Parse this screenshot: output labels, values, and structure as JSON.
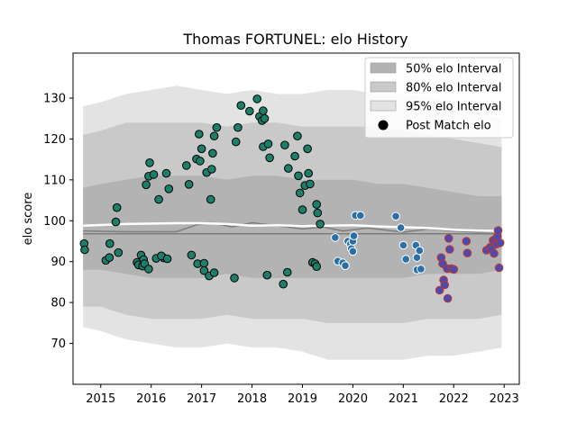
{
  "chart_data": {
    "type": "scatter",
    "title": "Thomas FORTUNEL: elo History",
    "xlabel": "",
    "ylabel": "elo score",
    "xlim": [
      2014.45,
      2023.3
    ],
    "ylim": [
      60,
      141
    ],
    "x_ticks": [
      2015,
      2016,
      2017,
      2018,
      2019,
      2020,
      2021,
      2022,
      2023
    ],
    "y_ticks": [
      70,
      80,
      90,
      100,
      110,
      120,
      130
    ],
    "grid": false,
    "legend_position": "top-right",
    "legend": [
      {
        "label": "50% elo Interval",
        "kind": "band50"
      },
      {
        "label": "80% elo Interval",
        "kind": "band80"
      },
      {
        "label": "95% elo Interval",
        "kind": "band95"
      },
      {
        "label": "Post Match elo",
        "kind": "marker"
      }
    ],
    "colors": {
      "band50": "#b3b3b3",
      "band80": "#c9c9c9",
      "band95": "#e3e3e3",
      "teal": "#1b7f6a",
      "blue": "#2a6fa8",
      "purple_fill": "#4a4ab0",
      "red_edge": "#c0392b",
      "mean_line": "#7d7d7d",
      "white_line": "#ffffff"
    },
    "bands": {
      "x": [
        2014.65,
        2015.0,
        2015.5,
        2016.0,
        2016.5,
        2017.0,
        2017.5,
        2018.0,
        2018.5,
        2019.0,
        2019.5,
        2020.0,
        2020.5,
        2021.0,
        2021.5,
        2022.0,
        2022.5,
        2022.95
      ],
      "p95_upper": [
        128,
        129,
        131,
        132,
        133,
        132,
        131,
        132,
        131,
        131,
        132,
        132,
        131,
        131,
        130,
        129,
        126,
        125
      ],
      "p95_lower": [
        74,
        73,
        71,
        70,
        69,
        69,
        70,
        69,
        69,
        68,
        66,
        66,
        66,
        66,
        67,
        67,
        68,
        69
      ],
      "p80_upper": [
        121,
        122,
        124,
        124,
        124,
        124,
        123,
        124,
        124,
        123,
        123,
        123,
        123,
        122,
        121,
        120,
        119,
        118
      ],
      "p80_lower": [
        79,
        79,
        77,
        76,
        76,
        76,
        77,
        76,
        76,
        76,
        75,
        75,
        75,
        75,
        76,
        76,
        76,
        77
      ],
      "p50_upper": [
        108,
        109,
        110,
        111,
        111,
        111,
        110,
        111,
        111,
        110,
        110,
        110,
        109,
        109,
        108,
        107,
        106,
        106
      ],
      "p50_lower": [
        88,
        88,
        87,
        86,
        86,
        86,
        87,
        86,
        86,
        86,
        86,
        86,
        86,
        86,
        87,
        87,
        87,
        88
      ]
    },
    "mean_line": {
      "x": [
        2014.65,
        2015.5,
        2016.5,
        2016.9,
        2017.2,
        2017.6,
        2018.0,
        2018.5,
        2019.0,
        2019.4,
        2019.8,
        2020.3,
        2021.0,
        2021.5,
        2022.0,
        2022.5,
        2022.9
      ],
      "y": [
        97.5,
        97.3,
        97.3,
        99.0,
        99.5,
        98.5,
        99.5,
        98.8,
        98.0,
        98.5,
        97.5,
        98.2,
        97.2,
        98.0,
        97.5,
        97.2,
        97.4
      ]
    },
    "median_line": {
      "x": [
        2014.65,
        2022.95
      ],
      "y": [
        96.8,
        96.8
      ]
    },
    "white_line": {
      "x": [
        2014.65,
        2015.5,
        2016.5,
        2017.0,
        2017.5,
        2018.0,
        2018.5,
        2019.0,
        2019.5,
        2020.0,
        2020.5,
        2021.0,
        2021.5,
        2022.0,
        2022.5,
        2022.95
      ],
      "y": [
        98.8,
        99.2,
        99.4,
        99.4,
        99.2,
        98.8,
        98.9,
        98.7,
        98.8,
        98.9,
        98.6,
        98.4,
        98.2,
        97.8,
        97.6,
        97.5
      ]
    },
    "series": [
      {
        "group": "teal",
        "points": [
          [
            2014.67,
            94.4
          ],
          [
            2014.68,
            92.9
          ],
          [
            2015.1,
            90.3
          ],
          [
            2015.18,
            94.4
          ],
          [
            2015.17,
            91.0
          ],
          [
            2015.3,
            99.7
          ],
          [
            2015.32,
            103.2
          ],
          [
            2015.35,
            92.2
          ],
          [
            2015.72,
            89.8
          ],
          [
            2015.75,
            89.2
          ],
          [
            2015.8,
            91.6
          ],
          [
            2015.83,
            88.9
          ],
          [
            2015.85,
            90.5
          ],
          [
            2015.87,
            89.5
          ],
          [
            2015.9,
            108.8
          ],
          [
            2015.95,
            110.9
          ],
          [
            2015.95,
            88.2
          ],
          [
            2015.97,
            114.2
          ],
          [
            2016.05,
            111.3
          ],
          [
            2016.1,
            90.8
          ],
          [
            2016.15,
            105.2
          ],
          [
            2016.25,
            90.9
          ],
          [
            2016.2,
            91.4
          ],
          [
            2016.3,
            111.6
          ],
          [
            2016.32,
            90.7
          ],
          [
            2016.35,
            107.8
          ],
          [
            2016.7,
            113.5
          ],
          [
            2016.75,
            108.9
          ],
          [
            2016.8,
            91.6
          ],
          [
            2016.9,
            115.1
          ],
          [
            2016.92,
            89.5
          ],
          [
            2016.95,
            121.2
          ],
          [
            2016.97,
            114.6
          ],
          [
            2017.0,
            117.6
          ],
          [
            2017.05,
            89.6
          ],
          [
            2017.05,
            87.8
          ],
          [
            2017.1,
            111.8
          ],
          [
            2017.15,
            86.5
          ],
          [
            2017.18,
            105.2
          ],
          [
            2017.2,
            112.6
          ],
          [
            2017.22,
            116.5
          ],
          [
            2017.25,
            120.7
          ],
          [
            2017.25,
            87.3
          ],
          [
            2017.3,
            122.8
          ],
          [
            2017.65,
            86.0
          ],
          [
            2017.68,
            119.3
          ],
          [
            2017.72,
            122.8
          ],
          [
            2017.78,
            128.2
          ],
          [
            2017.95,
            126.8
          ],
          [
            2018.1,
            129.8
          ],
          [
            2018.15,
            125.5
          ],
          [
            2018.2,
            124.5
          ],
          [
            2018.22,
            126.9
          ],
          [
            2018.22,
            118.1
          ],
          [
            2018.25,
            125.0
          ],
          [
            2018.3,
            86.7
          ],
          [
            2018.32,
            118.8
          ],
          [
            2018.35,
            115.4
          ],
          [
            2018.62,
            84.5
          ],
          [
            2018.65,
            118.5
          ],
          [
            2018.7,
            87.4
          ],
          [
            2018.72,
            112.8
          ],
          [
            2018.85,
            115.8
          ],
          [
            2018.9,
            120.7
          ],
          [
            2018.92,
            111.0
          ],
          [
            2018.95,
            106.8
          ],
          [
            2019.0,
            102.7
          ],
          [
            2019.05,
            108.6
          ],
          [
            2019.1,
            117.6
          ],
          [
            2019.12,
            111.6
          ],
          [
            2019.15,
            109.0
          ],
          [
            2019.2,
            89.8
          ],
          [
            2019.25,
            89.5
          ],
          [
            2019.28,
            88.8
          ],
          [
            2019.28,
            104.0
          ],
          [
            2019.3,
            101.9
          ],
          [
            2019.35,
            99.2
          ]
        ]
      },
      {
        "group": "blue",
        "points": [
          [
            2019.65,
            95.9
          ],
          [
            2019.7,
            90.1
          ],
          [
            2019.8,
            89.7
          ],
          [
            2019.85,
            89.0
          ],
          [
            2019.9,
            95.0
          ],
          [
            2019.95,
            94.3
          ],
          [
            2019.97,
            93.2
          ],
          [
            2020.0,
            92.5
          ],
          [
            2020.0,
            95.0
          ],
          [
            2020.02,
            96.3
          ],
          [
            2020.05,
            101.3
          ],
          [
            2020.15,
            101.3
          ],
          [
            2020.85,
            101.1
          ],
          [
            2020.95,
            98.3
          ],
          [
            2021.0,
            94.0
          ],
          [
            2021.05,
            90.6
          ],
          [
            2021.25,
            94.0
          ],
          [
            2021.27,
            91.0
          ],
          [
            2021.27,
            88.0
          ],
          [
            2021.32,
            92.7
          ],
          [
            2021.35,
            88.2
          ]
        ]
      },
      {
        "group": "purple",
        "points": [
          [
            2021.72,
            83.0
          ],
          [
            2021.75,
            91.0
          ],
          [
            2021.78,
            89.5
          ],
          [
            2021.8,
            85.5
          ],
          [
            2021.82,
            84.3
          ],
          [
            2021.87,
            88.3
          ],
          [
            2021.88,
            81.0
          ],
          [
            2021.9,
            95.7
          ],
          [
            2021.92,
            93.0
          ],
          [
            2021.95,
            88.3
          ],
          [
            2022.0,
            88.1
          ],
          [
            2022.25,
            95.0
          ],
          [
            2022.27,
            92.1
          ],
          [
            2022.65,
            92.8
          ],
          [
            2022.72,
            93.5
          ],
          [
            2022.75,
            93.0
          ],
          [
            2022.78,
            95.2
          ],
          [
            2022.8,
            92.0
          ],
          [
            2022.82,
            95.5
          ],
          [
            2022.85,
            94.3
          ],
          [
            2022.87,
            96.2
          ],
          [
            2022.88,
            97.6
          ],
          [
            2022.9,
            88.5
          ],
          [
            2022.92,
            94.6
          ]
        ]
      }
    ]
  }
}
